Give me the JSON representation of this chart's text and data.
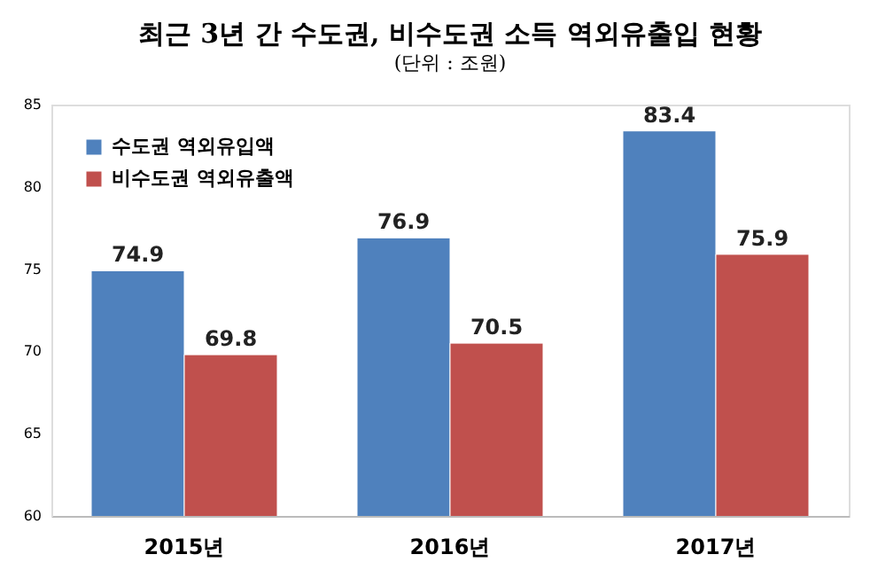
{
  "chart_data": {
    "type": "bar",
    "title": "최근 3년 간 수도권, 비수도권 소득 역외유출입 현황",
    "subtitle": "(단위 : 조원)",
    "categories": [
      "2015년",
      "2016년",
      "2017년"
    ],
    "series": [
      {
        "name": "수도권 역외유입액",
        "color": "#4f81bd",
        "values": [
          74.9,
          76.9,
          83.4
        ]
      },
      {
        "name": "비수도권 역외유출액",
        "color": "#c0504d",
        "values": [
          69.8,
          70.5,
          75.9
        ]
      }
    ],
    "ylim": [
      60,
      85
    ],
    "yticks": [
      60,
      65,
      70,
      75,
      80,
      85
    ],
    "grid": false,
    "legend": "top left",
    "data_labels": true
  }
}
